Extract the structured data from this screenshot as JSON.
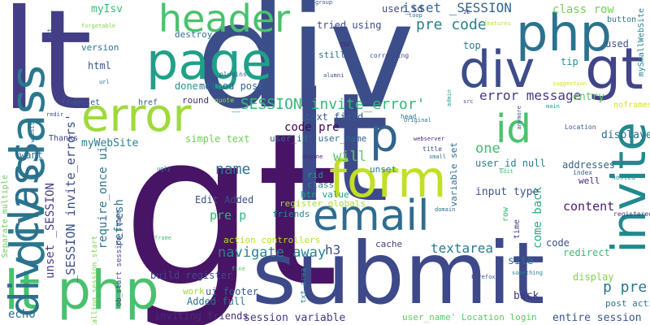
{
  "words": [
    {
      "text": "gt",
      "color": "#471466"
    },
    {
      "text": "div",
      "color": "#3b4e8a"
    },
    {
      "text": "lt",
      "color": "#433e85"
    },
    {
      "text": "lt",
      "color": "#3d4b8a"
    },
    {
      "text": "submit",
      "color": "#3e4989"
    },
    {
      "text": "invite",
      "color": "#23898e"
    },
    {
      "text": "gt",
      "color": "#414487"
    },
    {
      "text": "php",
      "color": "#2c728e"
    },
    {
      "text": "div",
      "color": "#3d4d8a"
    },
    {
      "text": "page",
      "color": "#1fa188"
    },
    {
      "text": "header",
      "color": "#4ac16d"
    },
    {
      "text": "error",
      "color": "#9fda3a"
    },
    {
      "text": "div class",
      "color": "#2a788e"
    },
    {
      "text": "form",
      "color": "#c2df23"
    },
    {
      "text": "email",
      "color": "#2f6c8e"
    },
    {
      "text": "lt php",
      "color": "#48c16e"
    },
    {
      "text": "id",
      "color": "#4cc26c"
    },
    {
      "text": "p",
      "color": "#33638d"
    },
    {
      "text": "div class",
      "color": "#2d708e"
    },
    {
      "text": "isset _SESSION",
      "color": "#32658e"
    },
    {
      "text": "pre code",
      "color": "#26818e"
    },
    {
      "text": "class row",
      "color": "#75d054"
    },
    {
      "text": "error message",
      "color": "#443a83"
    },
    {
      "text": "_SESSION invite_error'",
      "color": "#37b878"
    },
    {
      "text": "tried using",
      "color": "#3e4a89"
    },
    {
      "text": "method post",
      "color": "#32658e"
    },
    {
      "text": "code pre",
      "color": "#440154"
    },
    {
      "text": "user_id' user_name",
      "color": "#31688e"
    },
    {
      "text": "mySmallWebSite",
      "color": "#25858e"
    },
    {
      "text": "name",
      "color": "#2c738e"
    },
    {
      "text": "will",
      "color": "#5ec962"
    },
    {
      "text": "one",
      "color": "#3fbc73"
    },
    {
      "text": "user_id null",
      "color": "#287c8e"
    },
    {
      "text": "text field",
      "color": "#365c8d"
    },
    {
      "text": "simple text",
      "color": "#6ece58"
    },
    {
      "text": "_SESSION invite_errors'",
      "color": "#3c4f8a"
    },
    {
      "text": "unset _SESSION",
      "color": "#433e85"
    },
    {
      "text": "require_once ui",
      "color": "#2b748e"
    },
    {
      "text": "refresh",
      "color": "#2d718e"
    },
    {
      "text": "navigate away",
      "color": "#24868e"
    },
    {
      "text": "textarea",
      "color": "#297a8e"
    },
    {
      "text": "come back",
      "color": "#25ac82"
    },
    {
      "text": "p pre",
      "color": "#2a778e"
    },
    {
      "text": "content",
      "color": "#481c6e"
    },
    {
      "text": "pre p",
      "color": "#31b57b"
    },
    {
      "text": "h3",
      "color": "#3b518b"
    },
    {
      "text": "input type",
      "color": "#39568c"
    },
    {
      "text": "echo",
      "color": "#306a8e"
    },
    {
      "text": "myIsv",
      "color": "#3bbb75"
    },
    {
      "text": "myWebSite",
      "color": "#277f8e"
    },
    {
      "text": "entire session",
      "color": "#3b528b"
    },
    {
      "text": "session variable",
      "color": "#453882"
    },
    {
      "text": "user_name' Location login",
      "color": "#5ec962"
    },
    {
      "text": "inviting friends",
      "color": "#472d7b"
    },
    {
      "text": "Added full",
      "color": "#2c728e"
    },
    {
      "text": "ui footer",
      "color": "#365d8d"
    },
    {
      "text": "build register",
      "color": "#3e4a89"
    },
    {
      "text": "post action",
      "color": "#2d718e"
    },
    {
      "text": "back",
      "color": "#46337f"
    },
    {
      "text": "display",
      "color": "#84d44b"
    },
    {
      "text": "redirect",
      "color": "#3dbc74"
    },
    {
      "text": "site",
      "color": "#2e6d8e"
    },
    {
      "text": "code",
      "color": "#3b528b"
    },
    {
      "text": "cache",
      "color": "#424086"
    },
    {
      "text": "action controllers",
      "color": "#b5de2b"
    },
    {
      "text": "friends",
      "color": "#228c8d"
    },
    {
      "text": "register globals",
      "color": "#a5db36"
    },
    {
      "text": "btn value",
      "color": "#1f9f88"
    },
    {
      "text": "class",
      "color": "#26828e"
    },
    {
      "text": "rid",
      "color": "#1e9b8a"
    },
    {
      "text": "unset",
      "color": "#2a768e"
    },
    {
      "text": "Edit Added",
      "color": "#3b518b"
    },
    {
      "text": "well",
      "color": "#482475"
    },
    {
      "text": "addresses",
      "color": "#33638d"
    },
    {
      "text": "displayed",
      "color": "#2d708e"
    },
    {
      "text": "entry",
      "color": "#60ca60"
    },
    {
      "text": "tip",
      "color": "#20928c"
    },
    {
      "text": "used",
      "color": "#3b518b"
    },
    {
      "text": "button",
      "color": "#2c738e"
    },
    {
      "text": "top",
      "color": "#287d8e"
    },
    {
      "text": "still",
      "color": "#2d718e"
    },
    {
      "text": "done",
      "color": "#1f978b"
    },
    {
      "text": "round",
      "color": "#472d7b"
    },
    {
      "text": "html",
      "color": "#3b528b"
    },
    {
      "text": "version",
      "color": "#2c728e"
    },
    {
      "text": "destroy",
      "color": "#2c738e"
    },
    {
      "text": "variable set",
      "color": "#2e6e8e"
    },
    {
      "text": "want",
      "color": "#2c728e"
    },
    {
      "text": "user_id",
      "color": "#3e4c8a"
    },
    {
      "text": "frameset",
      "color": "#38598c"
    },
    {
      "text": "href",
      "color": "#365c8d"
    },
    {
      "text": "Thanks",
      "color": "#404588"
    },
    {
      "text": "Separate multiple",
      "color": "#6ccd5a"
    },
    {
      "text": "calling session_start",
      "color": "#7ad151"
    },
    {
      "text": "ob_start session_start",
      "color": "#404588"
    },
    {
      "text": "txt area",
      "color": "#25848e"
    },
    {
      "text": "work",
      "color": "#a0da39"
    },
    {
      "text": "row",
      "color": "#35b779"
    },
    {
      "text": "time",
      "color": "#424086"
    },
    {
      "text": "Location",
      "color": "#3b528b"
    },
    {
      "text": "noframes",
      "color": "#d8e219"
    },
    {
      "text": "registered",
      "color": "#443983"
    },
    {
      "text": "hosted",
      "color": "#25848e"
    },
    {
      "text": "index",
      "color": "#38598c"
    },
    {
      "text": "main",
      "color": "#1e9c89"
    },
    {
      "text": "suggestion",
      "color": "#d2e21b"
    },
    {
      "text": "head",
      "color": "#2a788e"
    },
    {
      "text": "group",
      "color": "#38598c"
    },
    {
      "text": "IE",
      "color": "#433d84"
    },
    {
      "text": "features",
      "color": "#bddf26"
    },
    {
      "text": "ISV",
      "color": "#482173"
    },
    {
      "text": "correcting",
      "color": "#3e4989"
    },
    {
      "text": "alumni",
      "color": "#3e4989"
    },
    {
      "text": "plugins",
      "color": "#38598c"
    },
    {
      "text": "quote",
      "color": "#9bd93c"
    },
    {
      "text": "admin",
      "color": "#1e9c89"
    },
    {
      "text": "src",
      "color": "#3a548c"
    },
    {
      "text": "Original",
      "color": "#2c728e"
    },
    {
      "text": "anymore",
      "color": "#3b528b"
    },
    {
      "text": "webserver",
      "color": "#482576"
    },
    {
      "text": "title",
      "color": "#3e4989"
    },
    {
      "text": "small",
      "color": "#2a768e"
    },
    {
      "text": "Anyone",
      "color": "#482878"
    },
    {
      "text": "Edit",
      "color": "#4ac16d"
    },
    {
      "text": "domain",
      "color": "#2c718e"
    },
    {
      "text": "ugly",
      "color": "#2c728e"
    },
    {
      "text": "frame",
      "color": "#48c16e"
    },
    {
      "text": "something",
      "color": "#25848e"
    },
    {
      "text": "Firefox",
      "color": "#3a548c"
    },
    {
      "text": "fine",
      "color": "#5ec962"
    },
    {
      "text": "redir",
      "color": "#3e4989"
    },
    {
      "text": "website",
      "color": "#2e6e8e"
    },
    {
      "text": "url",
      "color": "#31688e"
    },
    {
      "text": "forgetable",
      "color": "#84d44b"
    },
    {
      "text": "put",
      "color": "#375b8d"
    },
    {
      "text": "loop",
      "color": "#2e6f8e"
    }
  ]
}
